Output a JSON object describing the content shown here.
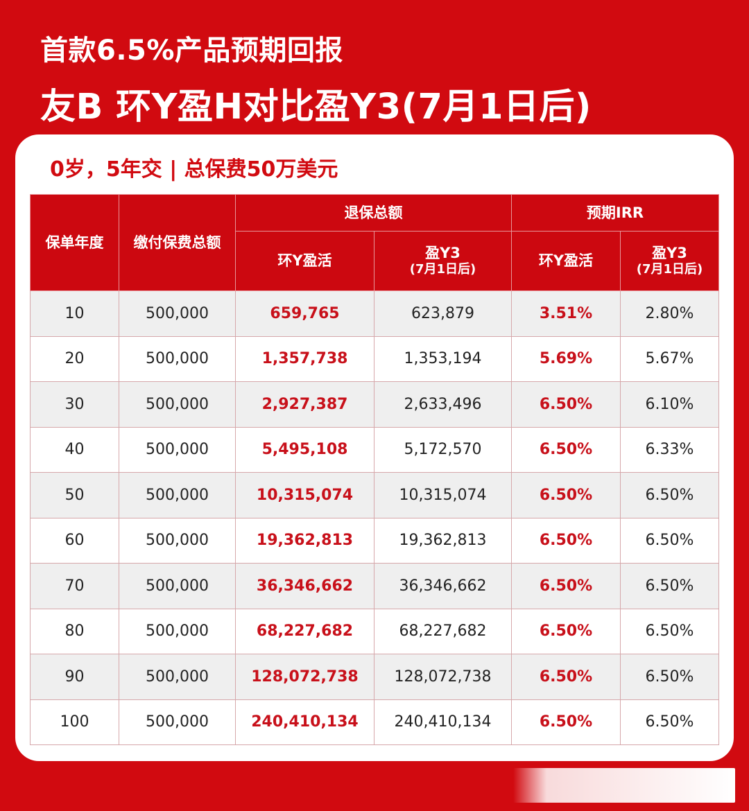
{
  "header": {
    "title_line1": "首款6.5%产品预期回报",
    "title_line2": "友B  环Y盈H对比盈Y3(7月1日后)"
  },
  "card": {
    "subtitle": "0岁，5年交 | 总保费50万美元"
  },
  "table": {
    "headers": {
      "policy_year": "保单年度",
      "total_premium": "缴付保费总额",
      "surrender_total": "退保总额",
      "expected_irr": "预期IRR",
      "huan_y": "环Y盈活",
      "ying_y3": "盈Y3",
      "ying_y3_note": "(7月1日后)"
    },
    "rows": [
      {
        "year": "10",
        "premium": "500,000",
        "surrender_a": "659,765",
        "surrender_b": "623,879",
        "irr_a": "3.51%",
        "irr_b": "2.80%"
      },
      {
        "year": "20",
        "premium": "500,000",
        "surrender_a": "1,357,738",
        "surrender_b": "1,353,194",
        "irr_a": "5.69%",
        "irr_b": "5.67%"
      },
      {
        "year": "30",
        "premium": "500,000",
        "surrender_a": "2,927,387",
        "surrender_b": "2,633,496",
        "irr_a": "6.50%",
        "irr_b": "6.10%"
      },
      {
        "year": "40",
        "premium": "500,000",
        "surrender_a": "5,495,108",
        "surrender_b": "5,172,570",
        "irr_a": "6.50%",
        "irr_b": "6.33%"
      },
      {
        "year": "50",
        "premium": "500,000",
        "surrender_a": "10,315,074",
        "surrender_b": "10,315,074",
        "irr_a": "6.50%",
        "irr_b": "6.50%"
      },
      {
        "year": "60",
        "premium": "500,000",
        "surrender_a": "19,362,813",
        "surrender_b": "19,362,813",
        "irr_a": "6.50%",
        "irr_b": "6.50%"
      },
      {
        "year": "70",
        "premium": "500,000",
        "surrender_a": "36,346,662",
        "surrender_b": "36,346,662",
        "irr_a": "6.50%",
        "irr_b": "6.50%"
      },
      {
        "year": "80",
        "premium": "500,000",
        "surrender_a": "68,227,682",
        "surrender_b": "68,227,682",
        "irr_a": "6.50%",
        "irr_b": "6.50%"
      },
      {
        "year": "90",
        "premium": "500,000",
        "surrender_a": "128,072,738",
        "surrender_b": "128,072,738",
        "irr_a": "6.50%",
        "irr_b": "6.50%"
      },
      {
        "year": "100",
        "premium": "500,000",
        "surrender_a": "240,410,134",
        "surrender_b": "240,410,134",
        "irr_a": "6.50%",
        "irr_b": "6.50%"
      }
    ]
  },
  "colors": {
    "brand_red": "#d10a10",
    "highlight_text": "#c8101a",
    "header_bg": "#cc0810",
    "row_alt_bg": "#efefef"
  }
}
